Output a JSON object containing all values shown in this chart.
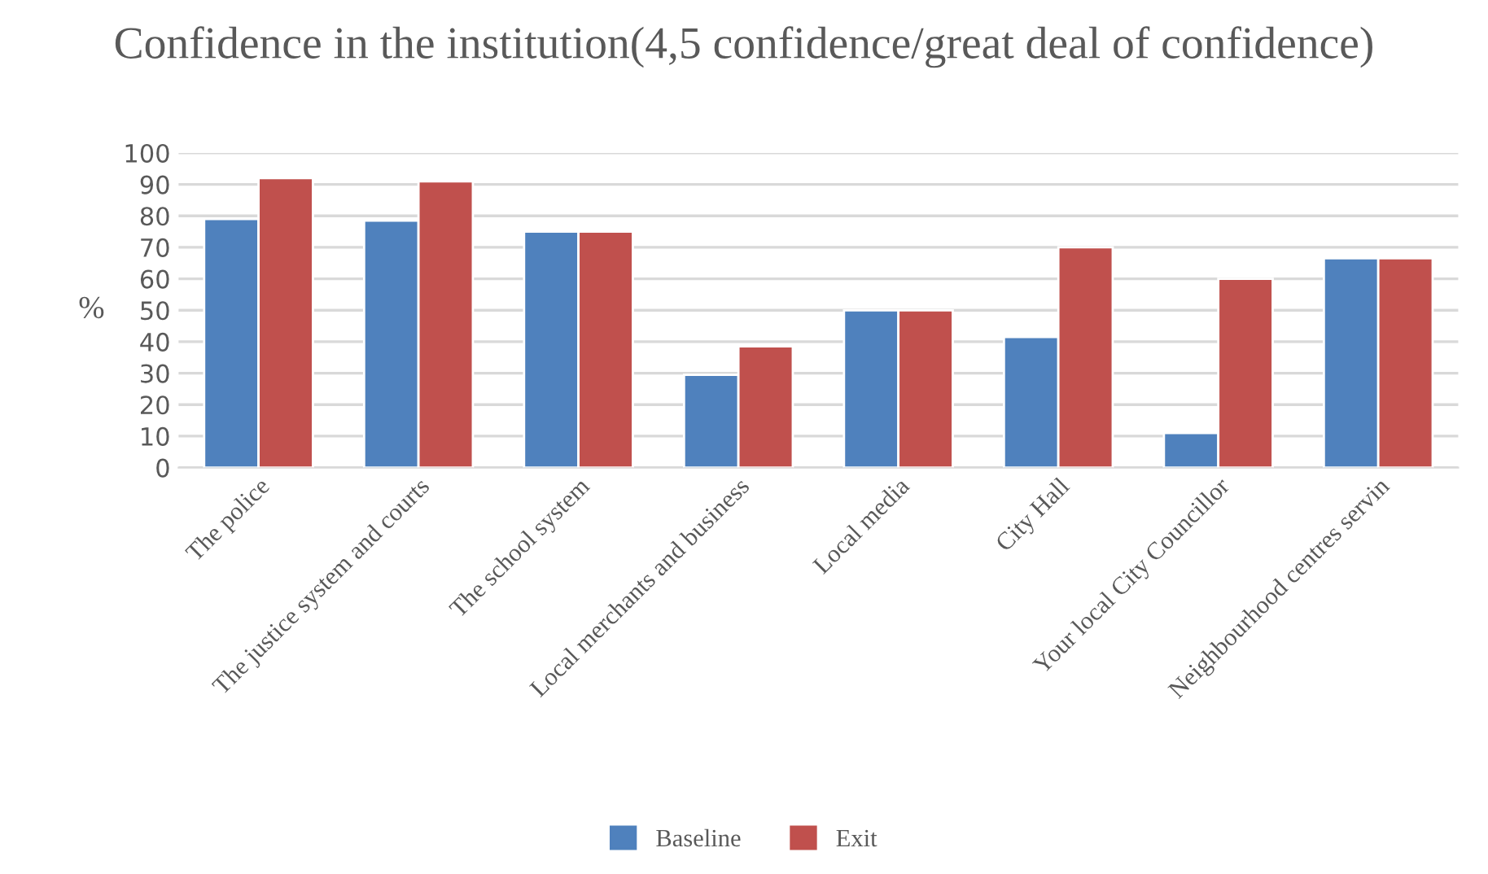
{
  "chart_data": {
    "type": "bar",
    "title": "Confidence in the institution(4,5 confidence/great deal of confidence)",
    "ylabel": "%",
    "categories": [
      "The police",
      "The justice system and courts",
      "The school system",
      "Local merchants and business",
      "Local media",
      "City Hall",
      "Your local City Councillor",
      "Neighbourhood centres servin"
    ],
    "series": [
      {
        "name": "Baseline",
        "color": "#4f81bd",
        "values": [
          79,
          78.5,
          75,
          29.5,
          50,
          41.5,
          11,
          66.5
        ]
      },
      {
        "name": "Exit",
        "color": "#c0504d",
        "values": [
          92,
          91,
          75,
          38.5,
          50,
          70,
          60,
          66.5
        ]
      }
    ],
    "ylim": [
      0,
      100
    ],
    "yticks": [
      0,
      10,
      20,
      30,
      40,
      50,
      60,
      70,
      80,
      90,
      100
    ],
    "grid": "y",
    "legend": "bottom"
  }
}
